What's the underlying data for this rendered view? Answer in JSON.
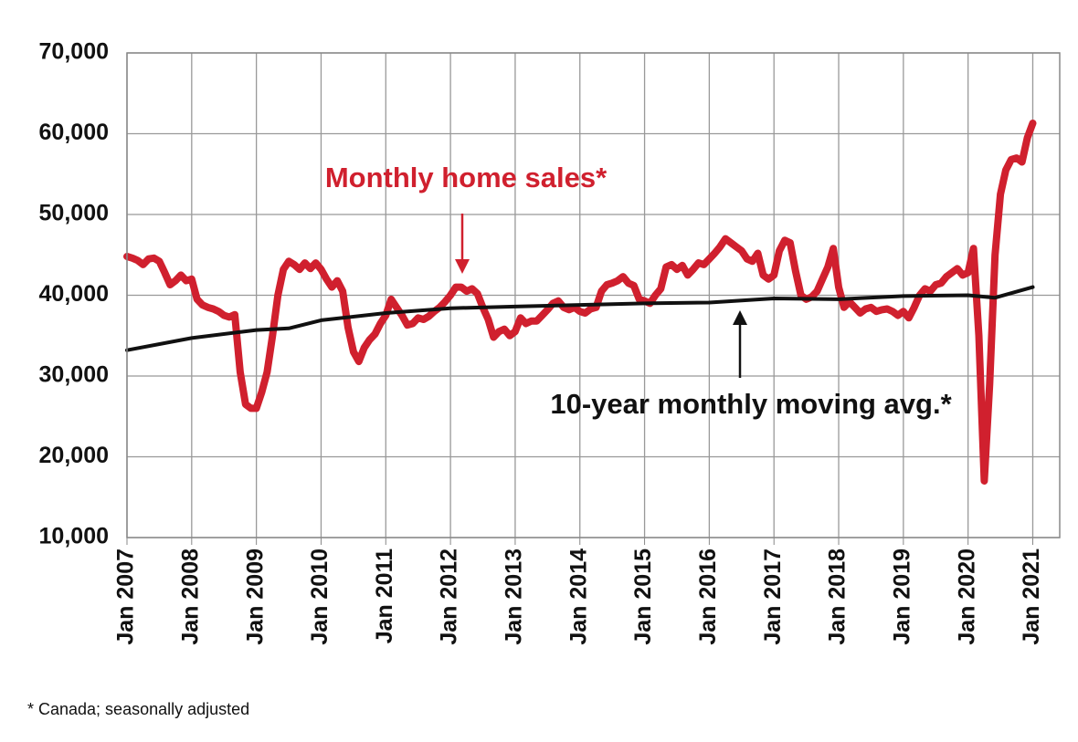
{
  "chart_data": {
    "type": "line",
    "x": [
      "2007-01",
      "2007-02",
      "2007-03",
      "2007-04",
      "2007-05",
      "2007-06",
      "2007-07",
      "2007-08",
      "2007-09",
      "2007-10",
      "2007-11",
      "2007-12",
      "2008-01",
      "2008-02",
      "2008-03",
      "2008-04",
      "2008-05",
      "2008-06",
      "2008-07",
      "2008-08",
      "2008-09",
      "2008-10",
      "2008-11",
      "2008-12",
      "2009-01",
      "2009-02",
      "2009-03",
      "2009-04",
      "2009-05",
      "2009-06",
      "2009-07",
      "2009-08",
      "2009-09",
      "2009-10",
      "2009-11",
      "2009-12",
      "2010-01",
      "2010-02",
      "2010-03",
      "2010-04",
      "2010-05",
      "2010-06",
      "2010-07",
      "2010-08",
      "2010-09",
      "2010-10",
      "2010-11",
      "2010-12",
      "2011-01",
      "2011-02",
      "2011-03",
      "2011-04",
      "2011-05",
      "2011-06",
      "2011-07",
      "2011-08",
      "2011-09",
      "2011-10",
      "2011-11",
      "2011-12",
      "2012-01",
      "2012-02",
      "2012-03",
      "2012-04",
      "2012-05",
      "2012-06",
      "2012-07",
      "2012-08",
      "2012-09",
      "2012-10",
      "2012-11",
      "2012-12",
      "2013-01",
      "2013-02",
      "2013-03",
      "2013-04",
      "2013-05",
      "2013-06",
      "2013-07",
      "2013-08",
      "2013-09",
      "2013-10",
      "2013-11",
      "2013-12",
      "2014-01",
      "2014-02",
      "2014-03",
      "2014-04",
      "2014-05",
      "2014-06",
      "2014-07",
      "2014-08",
      "2014-09",
      "2014-10",
      "2014-11",
      "2014-12",
      "2015-01",
      "2015-02",
      "2015-03",
      "2015-04",
      "2015-05",
      "2015-06",
      "2015-07",
      "2015-08",
      "2015-09",
      "2015-10",
      "2015-11",
      "2015-12",
      "2016-01",
      "2016-02",
      "2016-03",
      "2016-04",
      "2016-05",
      "2016-06",
      "2016-07",
      "2016-08",
      "2016-09",
      "2016-10",
      "2016-11",
      "2016-12",
      "2017-01",
      "2017-02",
      "2017-03",
      "2017-04",
      "2017-05",
      "2017-06",
      "2017-07",
      "2017-08",
      "2017-09",
      "2017-10",
      "2017-11",
      "2017-12",
      "2018-01",
      "2018-02",
      "2018-03",
      "2018-04",
      "2018-05",
      "2018-06",
      "2018-07",
      "2018-08",
      "2018-09",
      "2018-10",
      "2018-11",
      "2018-12",
      "2019-01",
      "2019-02",
      "2019-03",
      "2019-04",
      "2019-05",
      "2019-06",
      "2019-07",
      "2019-08",
      "2019-09",
      "2019-10",
      "2019-11",
      "2019-12",
      "2020-01",
      "2020-02",
      "2020-03",
      "2020-04",
      "2020-05",
      "2020-06",
      "2020-07",
      "2020-08",
      "2020-09",
      "2020-10",
      "2020-11",
      "2020-12",
      "2021-01"
    ],
    "series": [
      {
        "name": "Monthly home sales*",
        "color": "#d0202e",
        "values": [
          44800,
          44600,
          44300,
          43800,
          44500,
          44600,
          44200,
          42800,
          41300,
          41800,
          42500,
          41800,
          42000,
          39500,
          38800,
          38500,
          38300,
          38000,
          37500,
          37300,
          37600,
          30500,
          26500,
          26000,
          26000,
          28000,
          30500,
          35000,
          40000,
          43200,
          44200,
          43800,
          43200,
          44000,
          43300,
          44000,
          43200,
          42000,
          41000,
          41800,
          40500,
          36000,
          33000,
          31800,
          33500,
          34500,
          35200,
          36500,
          37500,
          39500,
          38500,
          37500,
          36300,
          36500,
          37200,
          37000,
          37400,
          38000,
          38500,
          39200,
          40000,
          41000,
          41000,
          40500,
          40800,
          40200,
          38500,
          37000,
          34800,
          35500,
          35800,
          35000,
          35500,
          37200,
          36500,
          36800,
          36800,
          37500,
          38200,
          39000,
          39300,
          38500,
          38200,
          38500,
          38000,
          37800,
          38300,
          38500,
          40500,
          41300,
          41500,
          41800,
          42300,
          41500,
          41200,
          39500,
          39300,
          39000,
          40000,
          40800,
          43500,
          43800,
          43200,
          43700,
          42500,
          43200,
          44000,
          43800,
          44500,
          45200,
          46000,
          47000,
          46500,
          46000,
          45500,
          44500,
          44200,
          45200,
          42500,
          42000,
          42500,
          45500,
          46800,
          46500,
          43000,
          40000,
          39500,
          39800,
          40500,
          42000,
          43500,
          45800,
          41000,
          38500,
          39200,
          38500,
          37800,
          38300,
          38500,
          38000,
          38200,
          38300,
          38000,
          37500,
          38000,
          37200,
          38500,
          40000,
          40800,
          40500,
          41300,
          41500,
          42300,
          42800,
          43300,
          42500,
          42800,
          45800,
          35000,
          17000,
          29000,
          45000,
          52500,
          55500,
          56800,
          57000,
          56500,
          59500,
          61300
        ]
      },
      {
        "name": "10-year monthly moving avg.*",
        "color": "#111111",
        "x": [
          "2007-01",
          "2008-01",
          "2009-01",
          "2009-07",
          "2010-01",
          "2011-01",
          "2012-01",
          "2013-01",
          "2014-01",
          "2015-01",
          "2016-01",
          "2017-01",
          "2018-01",
          "2019-01",
          "2020-01",
          "2020-06",
          "2021-01"
        ],
        "values": [
          33200,
          34700,
          35700,
          35900,
          36900,
          37800,
          38400,
          38600,
          38800,
          39000,
          39100,
          39600,
          39500,
          39900,
          40000,
          39700,
          41000
        ]
      }
    ],
    "xlim": [
      "2007-01",
      "2021-06"
    ],
    "xticks": [
      {
        "value": "2007-01",
        "label": "Jan 2007"
      },
      {
        "value": "2008-01",
        "label": "Jan 2008"
      },
      {
        "value": "2009-01",
        "label": "Jan 2009"
      },
      {
        "value": "2010-01",
        "label": "Jan 2010"
      },
      {
        "value": "2011-01",
        "label": "Jan 2011"
      },
      {
        "value": "2012-01",
        "label": "Jan 2012"
      },
      {
        "value": "2013-01",
        "label": "Jan 2013"
      },
      {
        "value": "2014-01",
        "label": "Jan 2014"
      },
      {
        "value": "2015-01",
        "label": "Jan 2015"
      },
      {
        "value": "2016-01",
        "label": "Jan 2016"
      },
      {
        "value": "2017-01",
        "label": "Jan 2017"
      },
      {
        "value": "2018-01",
        "label": "Jan 2018"
      },
      {
        "value": "2019-01",
        "label": "Jan 2019"
      },
      {
        "value": "2020-01",
        "label": "Jan 2020"
      },
      {
        "value": "2021-01",
        "label": "Jan 2021"
      }
    ],
    "ylim": [
      10000,
      70000
    ],
    "yticks": [
      {
        "value": 10000,
        "label": "10,000"
      },
      {
        "value": 20000,
        "label": "20,000"
      },
      {
        "value": 30000,
        "label": "30,000"
      },
      {
        "value": 40000,
        "label": "40,000"
      },
      {
        "value": 50000,
        "label": "50,000"
      },
      {
        "value": 60000,
        "label": "60,000"
      },
      {
        "value": 70000,
        "label": "70,000"
      }
    ],
    "grid": true,
    "footnote": "* Canada; seasonally adjusted"
  }
}
